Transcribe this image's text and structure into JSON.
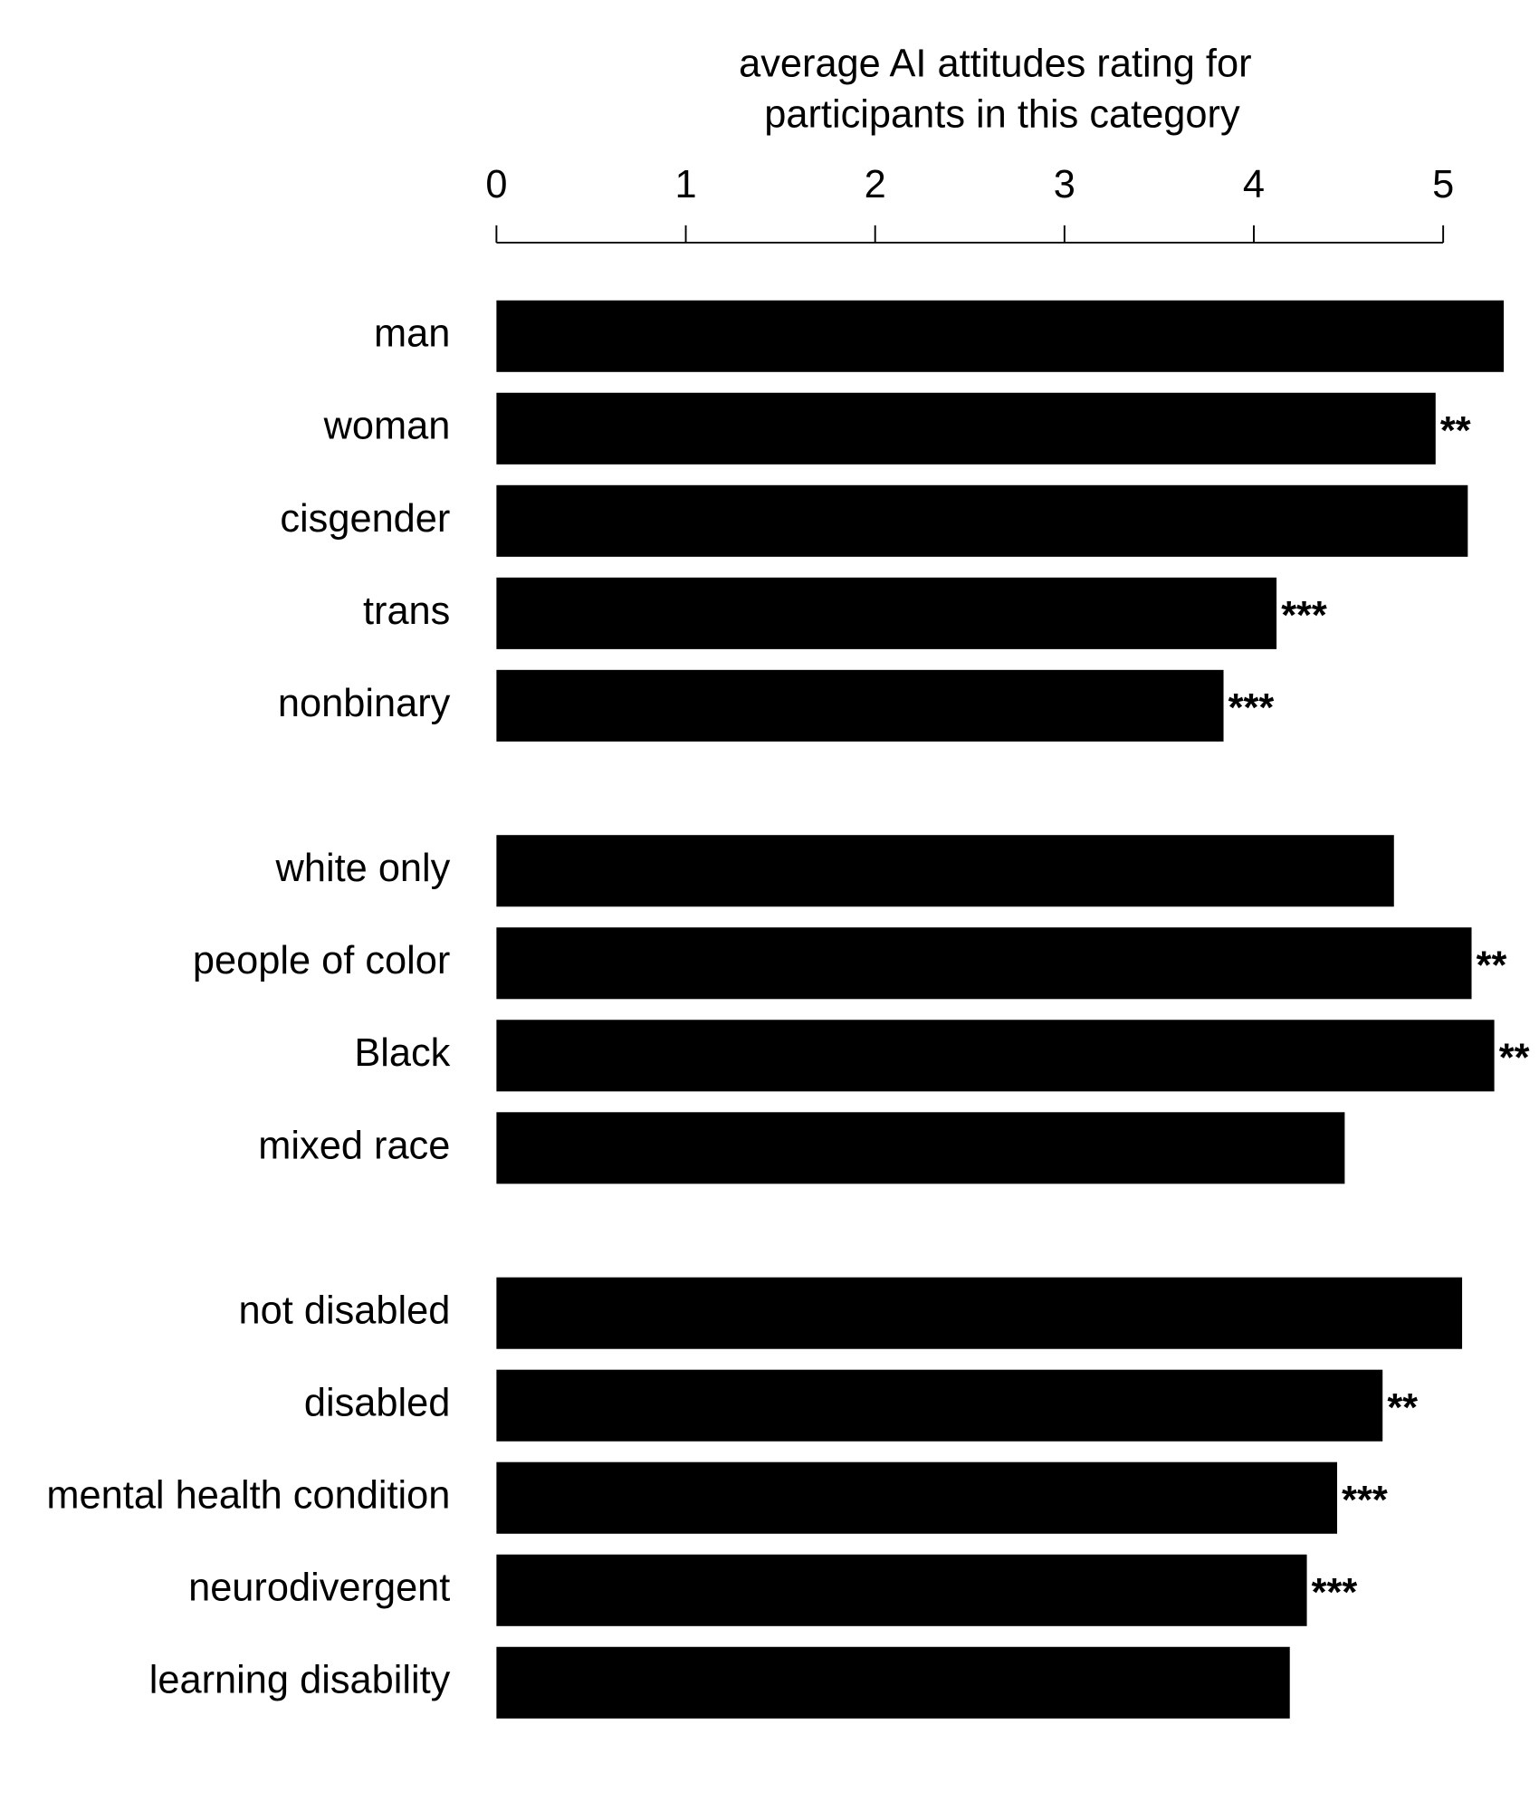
{
  "chart_data": {
    "type": "barh",
    "title": [
      "average AI attitudes rating for",
      "participants in this category"
    ],
    "categories": [
      "man",
      "woman",
      "cisgender",
      "trans",
      "nonbinary",
      "white only",
      "people of color",
      "Black",
      "mixed race",
      "not disabled",
      "disabled",
      "mental health condition",
      "neurodivergent",
      "learning disability"
    ],
    "values": [
      5.32,
      4.96,
      5.13,
      4.12,
      3.84,
      4.74,
      5.15,
      5.27,
      4.48,
      5.1,
      4.68,
      4.44,
      4.28,
      4.19
    ],
    "annotations": [
      null,
      "**",
      null,
      "***",
      "***",
      null,
      "**",
      "**",
      null,
      null,
      "**",
      "***",
      "***",
      null
    ],
    "color": "#000000",
    "xlim": [
      0,
      5
    ],
    "xticks": [
      0,
      1,
      2,
      3,
      4,
      5
    ],
    "grid": false
  }
}
